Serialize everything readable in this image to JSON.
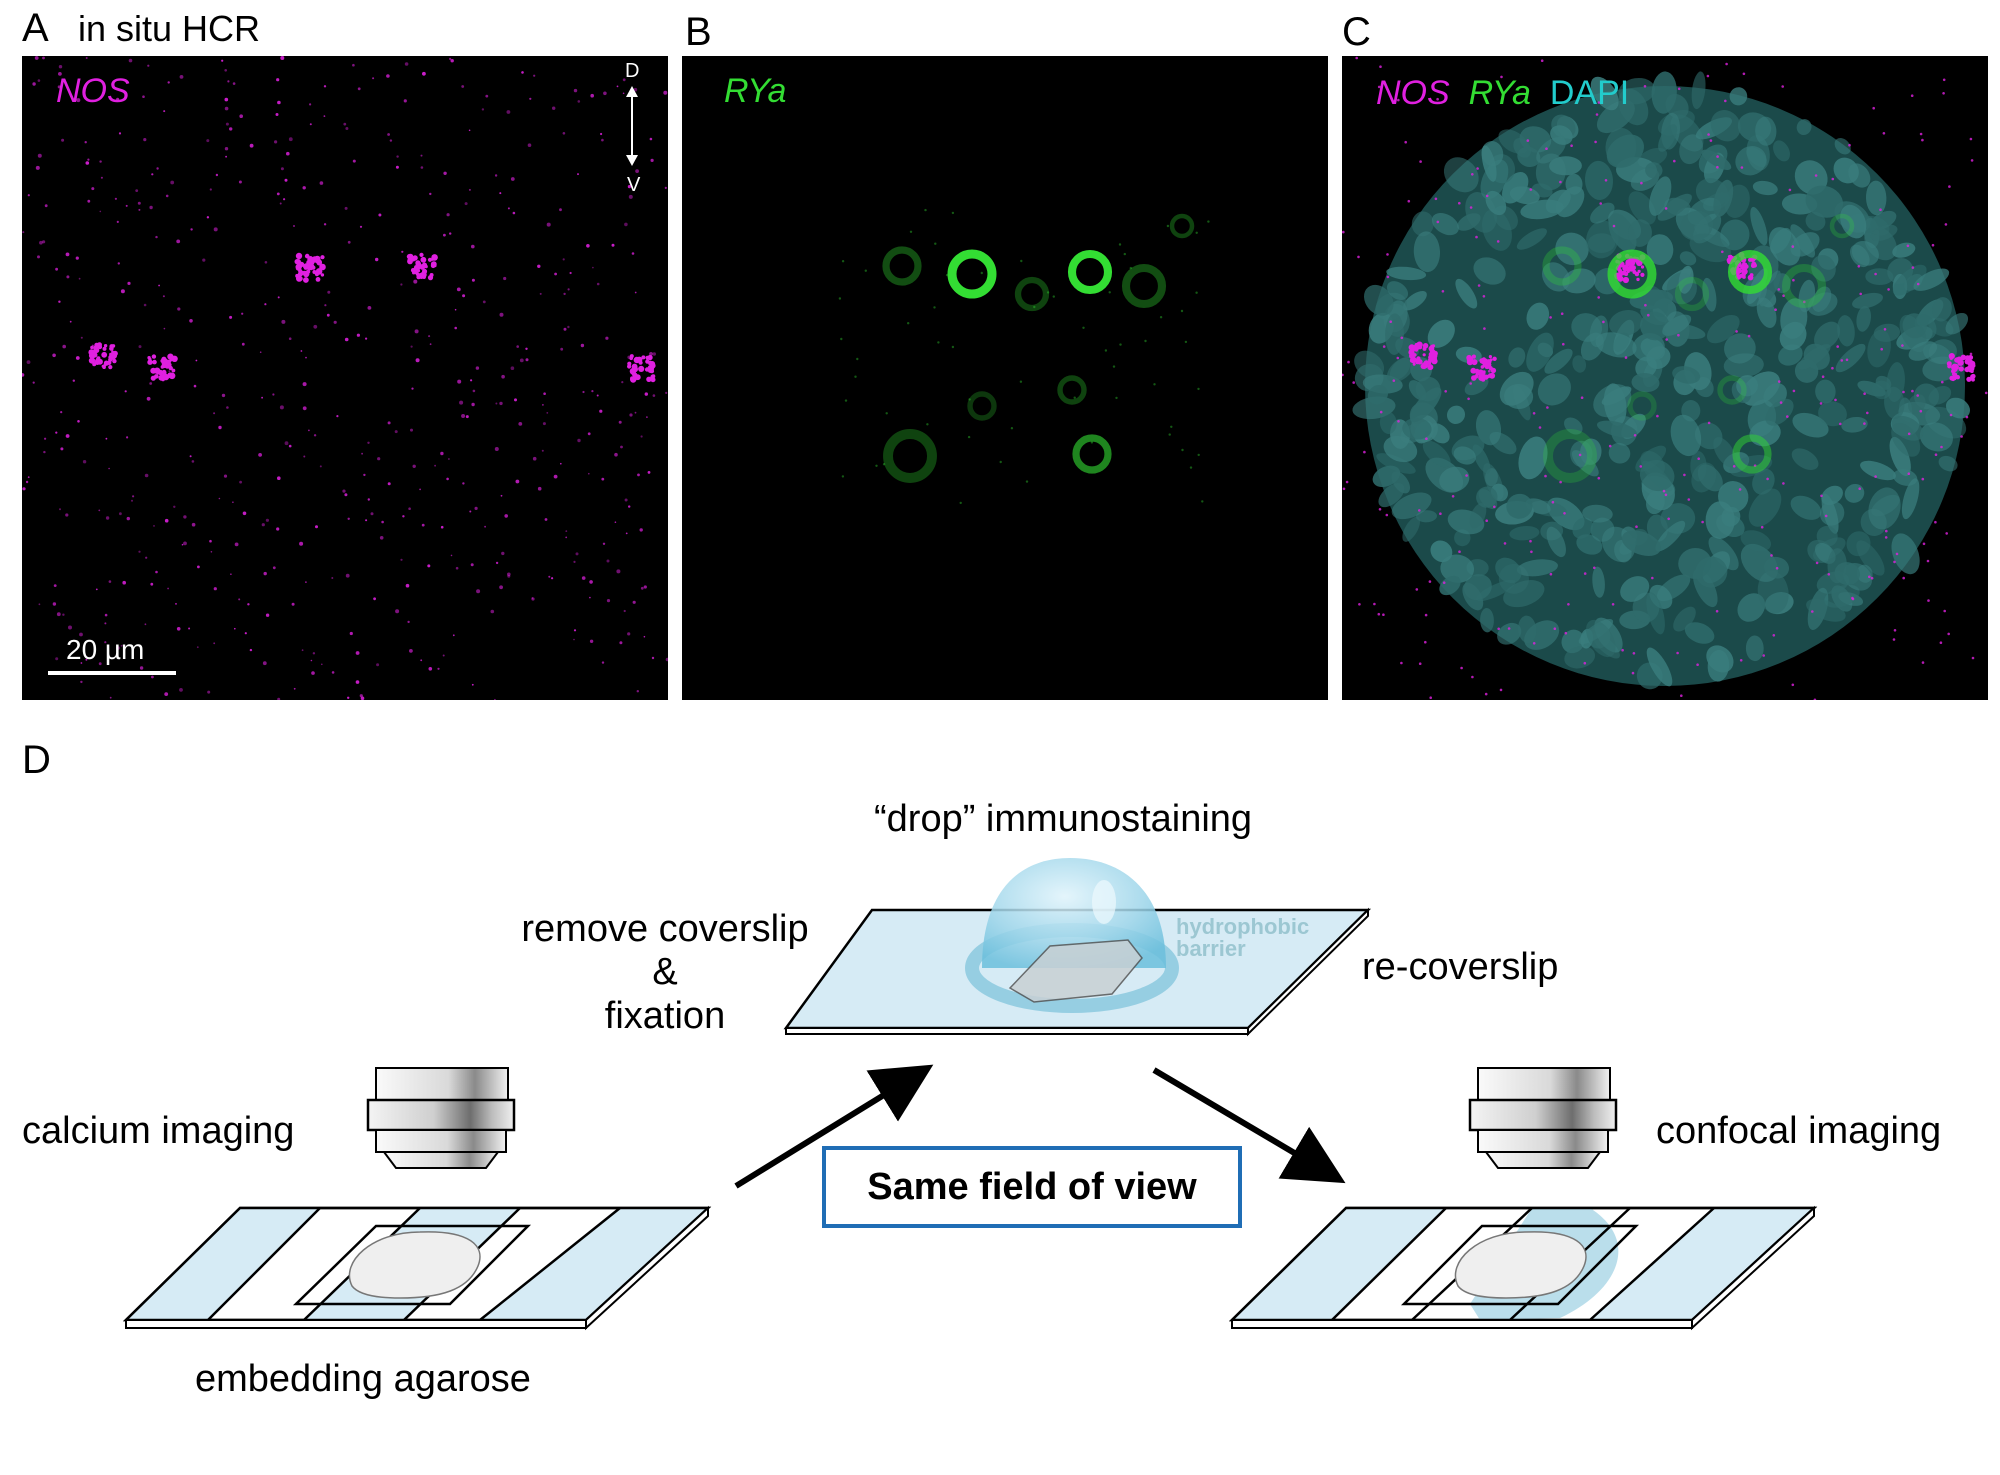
{
  "figure": {
    "panel_a": {
      "letter": "A",
      "title": "in situ HCR",
      "channel_label": "NOS",
      "orientation": {
        "top": "D",
        "bottom": "V"
      },
      "scale_bar": "20 µm"
    },
    "panel_b": {
      "letter": "B",
      "channel_label": "RYa"
    },
    "panel_c": {
      "letter": "C",
      "labels": [
        {
          "text": "NOS",
          "color": "#e020e0"
        },
        {
          "text": "RYa",
          "color": "#33dd33"
        },
        {
          "text": "DAPI",
          "color": "#22cccc"
        }
      ]
    },
    "panel_d": {
      "letter": "D",
      "steps": {
        "calcium_imaging": "calcium imaging",
        "embedding_agarose": "embedding agarose",
        "remove_coverslip": "remove coverslip",
        "ampersand": "&",
        "fixation": "fixation",
        "drop_immunostaining": "“drop” immunostaining",
        "hydrophobic": "hydrophobic",
        "barrier": "barrier",
        "recoverslip": "re-coverslip",
        "confocal_imaging": "confocal imaging"
      },
      "callout": "Same field of view"
    },
    "colors": {
      "nos": "#e020e0",
      "rya": "#33dd33",
      "dapi": "#2a6b6b",
      "slide_fill": "#d6ebf5",
      "callout_border": "#1f6db5"
    }
  }
}
